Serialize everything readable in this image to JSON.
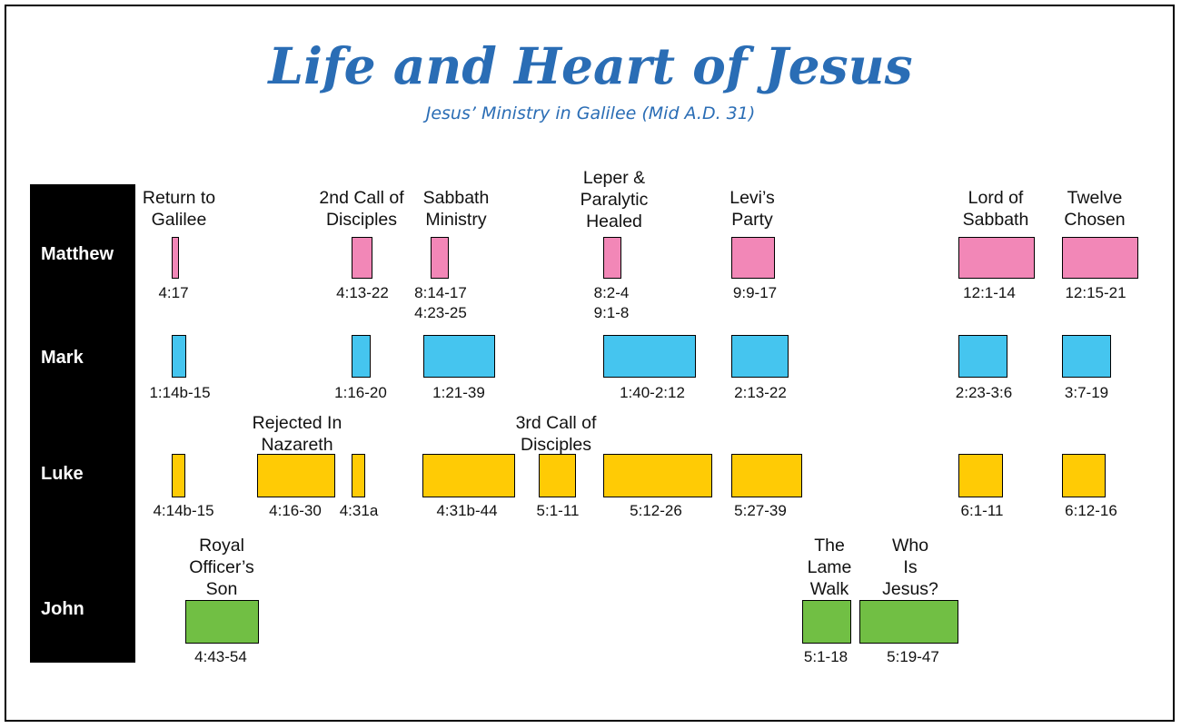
{
  "title": "Life and Heart of Jesus",
  "subtitle": "Jesus’ Ministry in Galilee (Mid A.D. 31)",
  "gospels": [
    "Matthew",
    "Mark",
    "Luke",
    "John"
  ],
  "colors": {
    "Matthew": "#f287b7",
    "Mark": "#45c5ef",
    "Luke": "#ffcb05",
    "John": "#71bf44"
  },
  "events": [
    "Return to\nGalilee",
    "2nd Call of\nDisciples",
    "Sabbath\nMinistry",
    "Leper &\nParalytic\nHealed",
    "Levi’s\nParty",
    "Lord of\nSabbath",
    "Twelve\nChosen",
    "Rejected In\nNazareth",
    "3rd Call of\nDisciples",
    "Royal\nOfficer’s\nSon",
    "The\nLame\nWalk",
    "Who\nIs\nJesus?"
  ],
  "references": {
    "matthew": [
      "4:17",
      "4:13-22",
      "8:14-17\n4:23-25",
      "8:2-4\n9:1-8",
      "9:9-17",
      "12:1-14",
      "12:15-21"
    ],
    "mark": [
      "1:14b-15",
      "1:16-20",
      "1:21-39",
      "1:40-2:12",
      "2:13-22",
      "2:23-3:6",
      "3:7-19"
    ],
    "luke": [
      "4:14b-15",
      "4:16-30",
      "4:31a",
      "4:31b-44",
      "5:1-11",
      "5:12-26",
      "5:27-39",
      "6:1-11",
      "6:12-16"
    ],
    "john": [
      "4:43-54",
      "5:1-18",
      "5:19-47"
    ]
  }
}
